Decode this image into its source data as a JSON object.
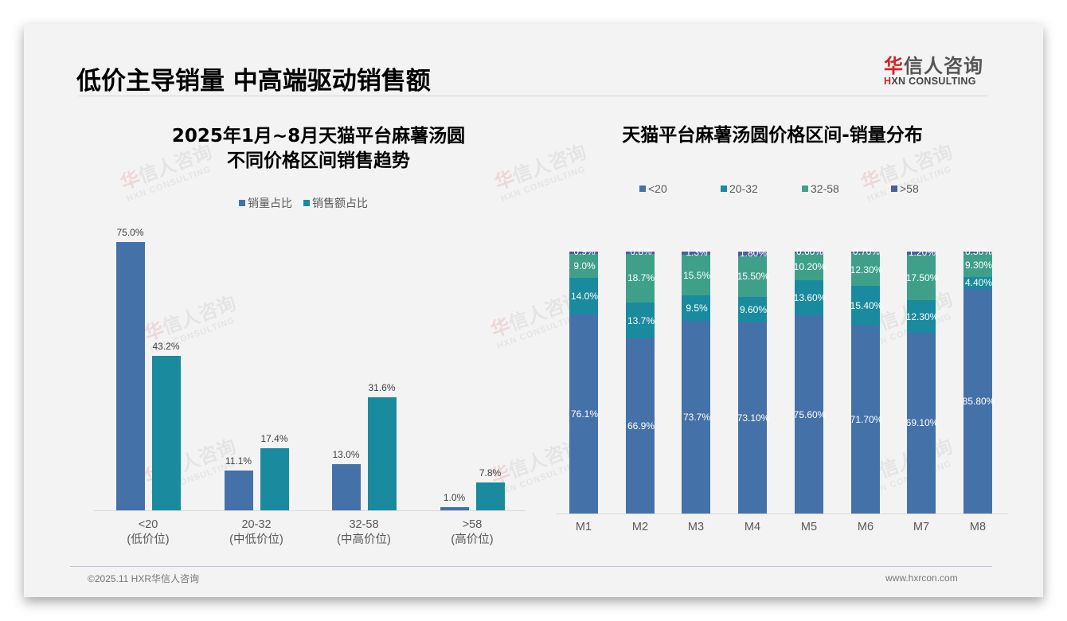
{
  "page": {
    "title": "低价主导销量 中高端驱动销售额",
    "logo": {
      "cn_first": "华",
      "cn_rest": "信人咨询",
      "en_first": "H",
      "en_rest": "XN CONSULTING"
    },
    "footer": {
      "left": "©2025.11 HXR华信人咨询",
      "right": "www.hxrcon.com"
    },
    "watermark": {
      "cn_first": "华",
      "cn_rest": "信人咨询",
      "en": "HXN CONSULTING"
    }
  },
  "colors": {
    "sales_volume": "#4472a8",
    "sales_value": "#1a8a9e",
    "lt20": "#4472a8",
    "r20_32": "#1a8a9e",
    "r32_58": "#3fa08a",
    "gt58": "#4a5fa0",
    "background": "#f3f3f3"
  },
  "chart_data": [
    {
      "type": "bar",
      "title": "2025年1月~8月天猫平台麻薯汤圆 不同价格区间销售趋势",
      "title_lines": [
        "2025年1月~8月天猫平台麻薯汤圆",
        "不同价格区间销售趋势"
      ],
      "categories": [
        "<20",
        "20-32",
        "32-58",
        ">58"
      ],
      "category_sublabels": [
        "(低价位)",
        "(中低价位)",
        "(中高价位)",
        "(高价位)"
      ],
      "series": [
        {
          "name": "销量占比",
          "values": [
            75.0,
            11.1,
            13.0,
            1.0
          ],
          "labels": [
            "75.0%",
            "11.1%",
            "13.0%",
            "1.0%"
          ]
        },
        {
          "name": "销售额占比",
          "values": [
            43.2,
            17.4,
            31.6,
            7.8
          ],
          "labels": [
            "43.2%",
            "17.4%",
            "31.6%",
            "7.8%"
          ]
        }
      ],
      "xlabel": "",
      "ylabel": "",
      "ylim": [
        0,
        80
      ],
      "grid": false,
      "legend_position": "top"
    },
    {
      "type": "bar",
      "stacked": true,
      "title": "天猫平台麻薯汤圆价格区间-销量分布",
      "categories": [
        "M1",
        "M2",
        "M3",
        "M4",
        "M5",
        "M6",
        "M7",
        "M8"
      ],
      "series": [
        {
          "name": "<20",
          "values": [
            76.1,
            66.9,
            73.7,
            73.1,
            75.6,
            71.7,
            69.1,
            85.8
          ],
          "labels": [
            "76.1%",
            "66.9%",
            "73.7%",
            "73.10%",
            "75.60%",
            "71.70%",
            "69.10%",
            "85.80%"
          ]
        },
        {
          "name": "20-32",
          "values": [
            14.0,
            13.7,
            9.5,
            9.6,
            13.6,
            15.4,
            12.3,
            4.4
          ],
          "labels": [
            "14.0%",
            "13.7%",
            "9.5%",
            "9.60%",
            "13.60%",
            "15.40%",
            "12.30%",
            "4.40%"
          ]
        },
        {
          "name": "32-58",
          "values": [
            9.0,
            18.7,
            15.5,
            15.5,
            10.2,
            12.3,
            17.5,
            9.3
          ],
          "labels": [
            "9.0%",
            "18.7%",
            "15.5%",
            "15.50%",
            "10.20%",
            "12.30%",
            "17.50%",
            "9.30%"
          ]
        },
        {
          "name": ">58",
          "values": [
            0.9,
            0.8,
            1.3,
            1.8,
            0.6,
            0.7,
            1.2,
            0.5
          ],
          "labels": [
            "0.9%",
            "0.8%",
            "1.3%",
            "1.80%",
            "0.60%",
            "0.70%",
            "1.20%",
            "0.50%"
          ]
        }
      ],
      "xlabel": "",
      "ylabel": "",
      "ylim": [
        0,
        100
      ],
      "grid": false,
      "legend_position": "top"
    }
  ]
}
